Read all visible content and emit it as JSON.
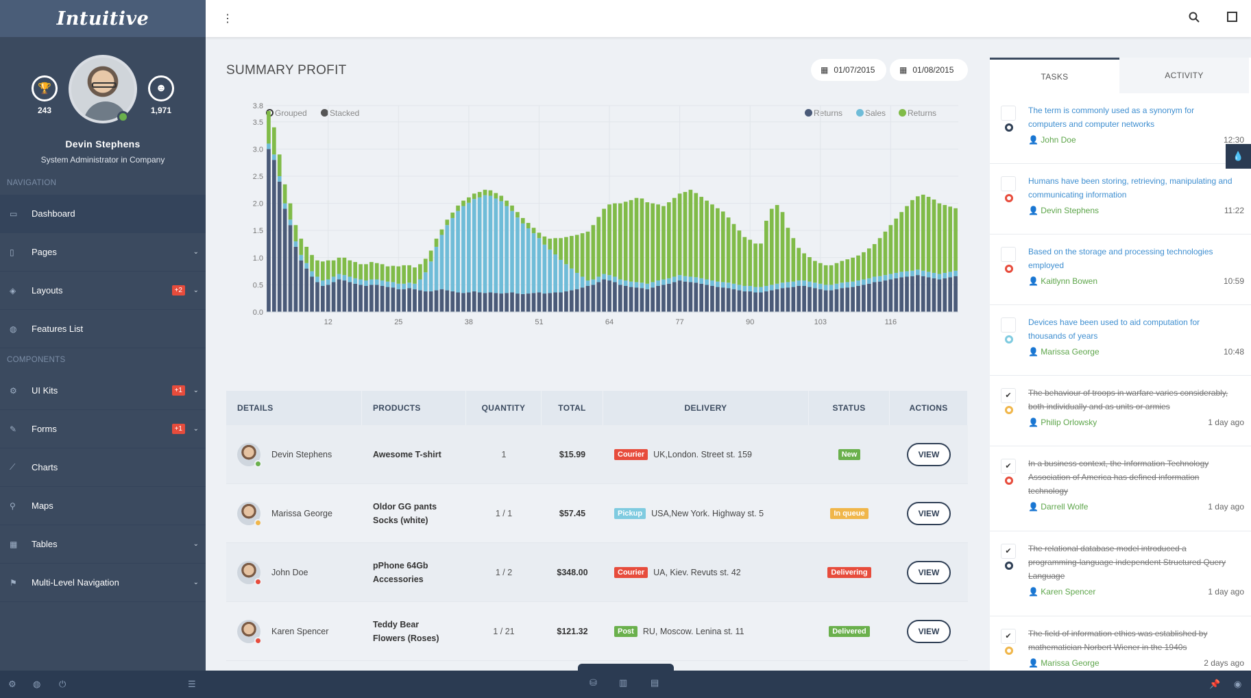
{
  "brand": "Intuitive",
  "profile": {
    "name": "Devin Stephens",
    "role": "System Administrator in Company",
    "stat_left": "243",
    "stat_right": "1,971"
  },
  "nav": {
    "section1": "NAVIGATION",
    "section2": "COMPONENTS",
    "items1": [
      {
        "label": "Dashboard",
        "icon": "monitor-icon"
      },
      {
        "label": "Pages",
        "icon": "file-icon"
      },
      {
        "label": "Layouts",
        "icon": "cube-icon",
        "badge": "+2"
      },
      {
        "label": "Features List",
        "icon": "globe-icon"
      }
    ],
    "items2": [
      {
        "label": "UI Kits",
        "icon": "cogs-icon",
        "badge": "+1"
      },
      {
        "label": "Forms",
        "icon": "pencil-icon",
        "badge": "+1"
      },
      {
        "label": "Charts",
        "icon": "line-chart-icon"
      },
      {
        "label": "Maps",
        "icon": "map-pin-icon"
      },
      {
        "label": "Tables",
        "icon": "table-icon"
      },
      {
        "label": "Multi-Level Navigation",
        "icon": "flag-icon"
      }
    ]
  },
  "main": {
    "title": "SUMMARY PROFIT",
    "date_from": "01/07/2015",
    "date_to": "01/08/2015"
  },
  "chart_legend": {
    "grouped": "Grouped",
    "stacked": "Stacked",
    "s1": "Returns",
    "s2": "Sales",
    "s3": "Returns"
  },
  "chart_data": {
    "type": "bar",
    "stacked": true,
    "x_ticks": [
      "12",
      "25",
      "38",
      "51",
      "64",
      "77",
      "90",
      "103",
      "116"
    ],
    "y_ticks": [
      "0.0",
      "0.5",
      "1.0",
      "1.5",
      "2.0",
      "2.5",
      "3.0",
      "3.5",
      "3.8"
    ],
    "ylim": [
      0,
      3.8
    ],
    "legend": "top-right",
    "colors": {
      "dark": "#4a5a78",
      "light": "#6fbcd8",
      "green": "#80bb48"
    },
    "series": [
      {
        "name": "Returns",
        "values": [
          3.0,
          2.8,
          2.4,
          1.9,
          1.6,
          1.2,
          0.95,
          0.8,
          0.65,
          0.55,
          0.48,
          0.5,
          0.55,
          0.6,
          0.58,
          0.55,
          0.52,
          0.5,
          0.48,
          0.5,
          0.5,
          0.48,
          0.46,
          0.45,
          0.42,
          0.42,
          0.44,
          0.42,
          0.4,
          0.38,
          0.38,
          0.4,
          0.42,
          0.4,
          0.38,
          0.36,
          0.35,
          0.36,
          0.38,
          0.36,
          0.35,
          0.36,
          0.35,
          0.34,
          0.35,
          0.36,
          0.34,
          0.33,
          0.34,
          0.35,
          0.36,
          0.34,
          0.35,
          0.36,
          0.36,
          0.38,
          0.4,
          0.42,
          0.45,
          0.48,
          0.5,
          0.55,
          0.6,
          0.58,
          0.55,
          0.5,
          0.48,
          0.46,
          0.45,
          0.44,
          0.42,
          0.45,
          0.48,
          0.5,
          0.52,
          0.55,
          0.58,
          0.56,
          0.55,
          0.54,
          0.52,
          0.5,
          0.48,
          0.46,
          0.45,
          0.44,
          0.42,
          0.4,
          0.38,
          0.38,
          0.36,
          0.36,
          0.38,
          0.4,
          0.42,
          0.44,
          0.45,
          0.46,
          0.48,
          0.48,
          0.46,
          0.44,
          0.42,
          0.4,
          0.4,
          0.42,
          0.44,
          0.45,
          0.46,
          0.48,
          0.5,
          0.52,
          0.55,
          0.56,
          0.58,
          0.6,
          0.62,
          0.64,
          0.65,
          0.66,
          0.68,
          0.66,
          0.64,
          0.62,
          0.6,
          0.62,
          0.64,
          0.66
        ]
      },
      {
        "name": "Sales",
        "values": [
          0.1,
          0.1,
          0.1,
          0.1,
          0.1,
          0.1,
          0.1,
          0.1,
          0.1,
          0.1,
          0.1,
          0.1,
          0.1,
          0.1,
          0.1,
          0.1,
          0.1,
          0.1,
          0.1,
          0.1,
          0.1,
          0.1,
          0.1,
          0.1,
          0.1,
          0.1,
          0.1,
          0.1,
          0.2,
          0.35,
          0.55,
          0.8,
          1.0,
          1.2,
          1.35,
          1.5,
          1.6,
          1.65,
          1.7,
          1.75,
          1.8,
          1.78,
          1.74,
          1.7,
          1.6,
          1.5,
          1.4,
          1.3,
          1.2,
          1.1,
          1.0,
          0.9,
          0.8,
          0.7,
          0.6,
          0.5,
          0.4,
          0.3,
          0.2,
          0.1,
          0.1,
          0.1,
          0.1,
          0.1,
          0.1,
          0.1,
          0.1,
          0.1,
          0.1,
          0.1,
          0.1,
          0.1,
          0.1,
          0.1,
          0.1,
          0.1,
          0.1,
          0.1,
          0.1,
          0.1,
          0.1,
          0.1,
          0.1,
          0.1,
          0.1,
          0.1,
          0.1,
          0.1,
          0.1,
          0.1,
          0.1,
          0.1,
          0.1,
          0.1,
          0.1,
          0.1,
          0.1,
          0.1,
          0.1,
          0.1,
          0.1,
          0.1,
          0.1,
          0.1,
          0.1,
          0.1,
          0.1,
          0.1,
          0.1,
          0.1,
          0.1,
          0.1,
          0.1,
          0.1,
          0.1,
          0.1,
          0.1,
          0.1,
          0.1,
          0.1,
          0.1,
          0.1,
          0.1,
          0.1,
          0.1,
          0.1,
          0.1,
          0.1
        ]
      },
      {
        "name": "Returns",
        "values": [
          0.6,
          0.5,
          0.4,
          0.35,
          0.3,
          0.3,
          0.3,
          0.3,
          0.3,
          0.3,
          0.35,
          0.35,
          0.3,
          0.3,
          0.32,
          0.3,
          0.3,
          0.28,
          0.3,
          0.32,
          0.3,
          0.3,
          0.28,
          0.3,
          0.32,
          0.34,
          0.32,
          0.3,
          0.28,
          0.25,
          0.2,
          0.15,
          0.1,
          0.1,
          0.1,
          0.1,
          0.1,
          0.1,
          0.1,
          0.1,
          0.1,
          0.1,
          0.1,
          0.1,
          0.1,
          0.1,
          0.1,
          0.1,
          0.1,
          0.1,
          0.1,
          0.15,
          0.2,
          0.3,
          0.4,
          0.5,
          0.6,
          0.7,
          0.8,
          0.9,
          1.0,
          1.1,
          1.2,
          1.3,
          1.35,
          1.4,
          1.45,
          1.5,
          1.55,
          1.55,
          1.5,
          1.45,
          1.4,
          1.35,
          1.4,
          1.45,
          1.5,
          1.55,
          1.6,
          1.55,
          1.5,
          1.45,
          1.4,
          1.35,
          1.3,
          1.2,
          1.1,
          1.0,
          0.9,
          0.85,
          0.8,
          0.8,
          1.2,
          1.4,
          1.45,
          1.3,
          1.0,
          0.8,
          0.6,
          0.5,
          0.45,
          0.4,
          0.38,
          0.36,
          0.36,
          0.38,
          0.4,
          0.42,
          0.44,
          0.46,
          0.5,
          0.55,
          0.6,
          0.7,
          0.8,
          0.9,
          1.0,
          1.1,
          1.2,
          1.3,
          1.35,
          1.4,
          1.38,
          1.35,
          1.3,
          1.25,
          1.2,
          1.15
        ]
      }
    ]
  },
  "table": {
    "headers": [
      "DETAILS",
      "PRODUCTS",
      "QUANTITY",
      "TOTAL",
      "DELIVERY",
      "STATUS",
      "ACTIONS"
    ],
    "rows": [
      {
        "name": "Devin Stephens",
        "product1": "Awesome T-shirt",
        "product2": "",
        "qty": "1",
        "total": "$15.99",
        "method": "Courier",
        "method_color": "#e74c3c",
        "address": "UK,London. Street st. 159",
        "status": "New",
        "status_color": "#6ab04c",
        "action": "VIEW",
        "dot": "#6ab04c"
      },
      {
        "name": "Marissa George",
        "product1": "Oldor GG pants",
        "product2": "Socks (white)",
        "qty": "1 / 1",
        "total": "$57.45",
        "method": "Pickup",
        "method_color": "#7fcbe0",
        "address": "USA,New York. Highway st. 5",
        "status": "In queue",
        "status_color": "#f0b64a",
        "action": "VIEW",
        "dot": "#f0b64a"
      },
      {
        "name": "John Doe",
        "product1": "pPhone 64Gb",
        "product2": "Accessories",
        "qty": "1 / 2",
        "total": "$348.00",
        "method": "Courier",
        "method_color": "#e74c3c",
        "address": "UA, Kiev. Revuts st. 42",
        "status": "Delivering",
        "status_color": "#e74c3c",
        "action": "VIEW",
        "dot": "#e74c3c"
      },
      {
        "name": "Karen Spencer",
        "product1": "Teddy Bear",
        "product2": "Flowers (Roses)",
        "qty": "1 / 21",
        "total": "$121.32",
        "method": "Post",
        "method_color": "#6ab04c",
        "address": "RU, Moscow. Lenina st. 11",
        "status": "Delivered",
        "status_color": "#6ab04c",
        "action": "VIEW",
        "dot": "#e74c3c"
      }
    ]
  },
  "panel": {
    "tab_tasks": "TASKS",
    "tab_activity": "ACTIVITY",
    "tasks": [
      {
        "text": "The term is commonly used as a synonym for computers and computer networks",
        "who": "John Doe",
        "when": "12:30",
        "done": false,
        "ring": "#2f3f55"
      },
      {
        "text": "Humans have been storing, retrieving, manipulating and communicating information",
        "who": "Devin Stephens",
        "when": "11:22",
        "done": false,
        "ring": "#e74c3c"
      },
      {
        "text": "Based on the storage and processing technologies employed",
        "who": "Kaitlynn Bowen",
        "when": "10:59",
        "done": false,
        "ring": "#e74c3c"
      },
      {
        "text": "Devices have been used to aid computation for thousands of years",
        "who": "Marissa George",
        "when": "10:48",
        "done": false,
        "ring": "#7fcbe0"
      },
      {
        "text": "The behaviour of troops in warfare varies considerably, both individually and as units or armies",
        "who": "Philip Orlowsky",
        "when": "1 day ago",
        "done": true,
        "ring": "#f0b64a"
      },
      {
        "text": "In a business context, the Information Technology Association of America has defined information technology",
        "who": "Darrell Wolfe",
        "when": "1 day ago",
        "done": true,
        "ring": "#e74c3c"
      },
      {
        "text": "The relational database model introduced a programming-language independent Structured Query Language",
        "who": "Karen Spencer",
        "when": "1 day ago",
        "done": true,
        "ring": "#2f3f55"
      },
      {
        "text": "The field of information ethics was established by mathematician Norbert Wiener in the 1940s",
        "who": "Marissa George",
        "when": "2 days ago",
        "done": true,
        "ring": "#f0b64a"
      }
    ]
  }
}
